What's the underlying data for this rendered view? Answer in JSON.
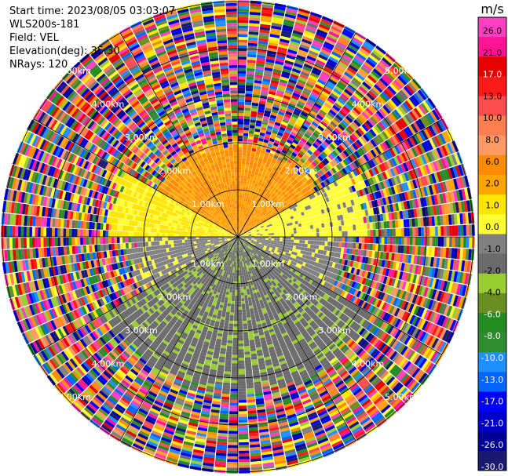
{
  "header": {
    "start_time": "Start time: 2023/08/05 03:03:07",
    "instrument": "WLS200s-181",
    "field": "Field: VEL",
    "elevation": "Elevation(deg): 35.30",
    "nrays": "NRays: 120"
  },
  "chart_data": {
    "type": "polar-ppi",
    "field": "VEL",
    "units": "m/s",
    "nrays": 120,
    "elevation_deg": 35.3,
    "start_time": "2023/08/05 03:03:07",
    "range_rings_km": [
      1.0,
      2.0,
      3.0,
      4.0,
      5.0
    ],
    "ring_labels": [
      "1.00km",
      "2.00km",
      "3.00km",
      "4.00km",
      "5.00km"
    ],
    "max_range_km": 5.0,
    "spokes_deg": [
      0,
      30,
      60,
      90,
      120,
      150,
      180,
      210,
      240,
      270,
      300,
      330
    ],
    "colorbar": {
      "unit_label": "m/s",
      "ticks": [
        "26.0",
        "21.0",
        "17.0",
        "13.0",
        "10.0",
        "8.0",
        "6.0",
        "2.0",
        "1.0",
        "0.0",
        "-1.0",
        "-2.0",
        "-4.0",
        "-6.0",
        "-8.0",
        "-10.0",
        "-13.0",
        "-17.0",
        "-21.0",
        "-26.0",
        "-30.0"
      ],
      "colors": [
        "#ff3fbf",
        "#ff1493",
        "#e60000",
        "#ff1a1a",
        "#ff4d4d",
        "#ff7f50",
        "#ff9966",
        "#ff8c00",
        "#ffa500",
        "#ffe600",
        "#ffff33",
        "#808080",
        "#6b6b6b",
        "#9acd32",
        "#6b8e23",
        "#228b22",
        "#2e8b2e",
        "#1e90ff",
        "#0066ff",
        "#0000ff",
        "#0000cd",
        "#000099",
        "#191970"
      ]
    },
    "pattern_description_sectors": [
      {
        "az_from": 300,
        "az_to": 60,
        "range_km": [
          0,
          2.2
        ],
        "value": 6.5
      },
      {
        "az_from": 270,
        "az_to": 300,
        "range_km": [
          0,
          3.0
        ],
        "value": 2.0
      },
      {
        "az_from": 60,
        "az_to": 90,
        "range_km": [
          0,
          3.0
        ],
        "value": 0.0
      },
      {
        "az_from": 90,
        "az_to": 120,
        "range_km": [
          0,
          2.5
        ],
        "value": -1.5
      },
      {
        "az_from": 120,
        "az_to": 240,
        "range_km": [
          0,
          3.5
        ],
        "value": -5.0
      },
      {
        "az_from": 240,
        "az_to": 270,
        "range_km": [
          0,
          2.5
        ],
        "value": -1.5
      }
    ]
  }
}
